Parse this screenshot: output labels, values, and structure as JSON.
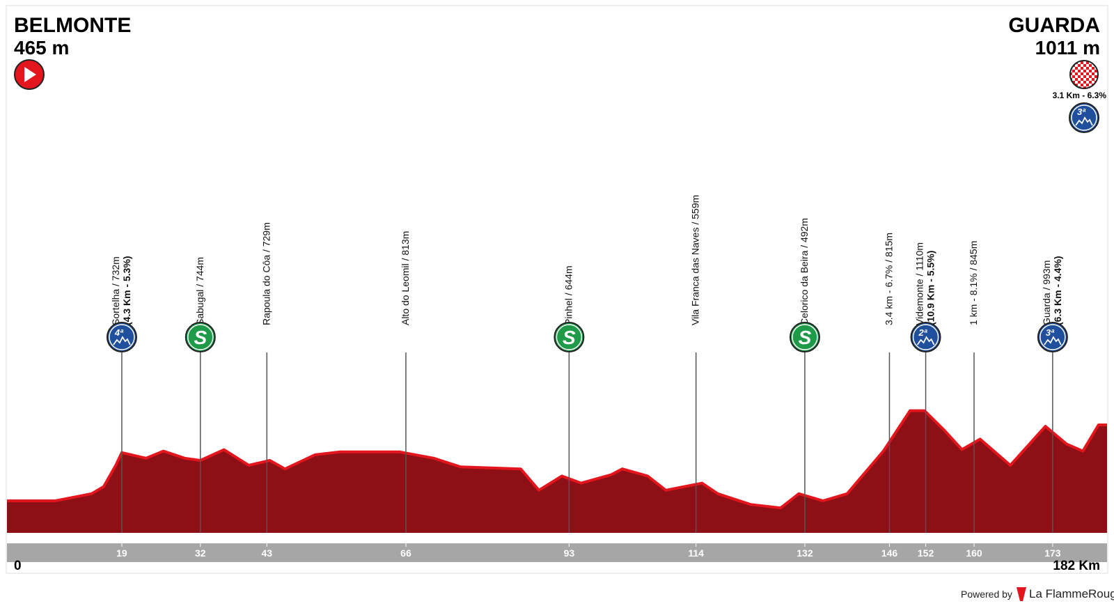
{
  "chart_data": {
    "type": "area",
    "start": {
      "name": "BELMONTE",
      "elevation": "465 m"
    },
    "finish": {
      "name": "GUARDA",
      "elevation": "1011 m",
      "climb": "3.1 Km - 6.3%",
      "badge": "3ª"
    },
    "x": [
      0,
      2,
      8,
      14,
      16,
      18,
      19,
      23,
      25.9,
      29.4,
      32,
      35.9,
      40,
      43.5,
      46,
      51,
      55,
      65,
      70.6,
      75,
      85,
      88,
      91.8,
      95,
      100,
      101.8,
      106,
      109,
      115,
      117.6,
      123,
      128,
      131,
      135,
      139,
      145,
      149.4,
      151.8,
      155,
      158,
      161,
      166,
      171.8,
      175.3,
      178,
      180.6,
      182
    ],
    "values": [
      465,
      465,
      465,
      516,
      567,
      720,
      811,
      771,
      822,
      771,
      755,
      832,
      720,
      755,
      694,
      796,
      816,
      816,
      771,
      709,
      694,
      541,
      643,
      592,
      653,
      694,
      643,
      541,
      592,
      516,
      439,
      414,
      516,
      465,
      516,
      822,
      1112,
      1112,
      975,
      833,
      908,
      720,
      1000,
      873,
      822,
      1010,
      1010
    ],
    "color": "#8c1015",
    "edge_color": "#e3151d",
    "xlim": [
      0,
      182
    ],
    "ylim": [
      235,
      1300
    ],
    "xticks": [
      0,
      19,
      32,
      43,
      66,
      93,
      114,
      132,
      146,
      152,
      160,
      173,
      {
        "value": 182,
        "label": "182 Km"
      }
    ],
    "markers": [
      {
        "km": 19,
        "label": "Sortelha / 732m",
        "detail": "(4.3 Km - 5.3%)",
        "badge": "4ª",
        "kind": "climb"
      },
      {
        "km": 32,
        "label": "Sabugal / 744m",
        "badge": "S",
        "kind": "sprint"
      },
      {
        "km": 43,
        "label": "Rapoula do Côa / 729m"
      },
      {
        "km": 66,
        "label": "Alto do Leomil / 813m"
      },
      {
        "km": 93,
        "label": "Pinhel / 644m",
        "badge": "S",
        "kind": "sprint"
      },
      {
        "km": 114,
        "label": "Vila Franca das Naves / 559m"
      },
      {
        "km": 132,
        "label": "Celorico da Beira / 492m",
        "badge": "S",
        "kind": "sprint"
      },
      {
        "km": 146,
        "label": "3.4 km - 6.7% / 815m"
      },
      {
        "km": 152,
        "label": "Videmonte / 1110m",
        "detail": "(10.9 Km - 5.5%)",
        "badge": "2ª",
        "kind": "climb"
      },
      {
        "km": 160,
        "label": "1 km - 8.1% / 845m"
      },
      {
        "km": 173,
        "label": "Guarda / 993m",
        "detail": "(6.3 Km - 4.4%)",
        "badge": "3ª",
        "kind": "climb"
      }
    ],
    "footer": {
      "powered": "Powered by",
      "brand": "La FlammeRouge"
    }
  }
}
